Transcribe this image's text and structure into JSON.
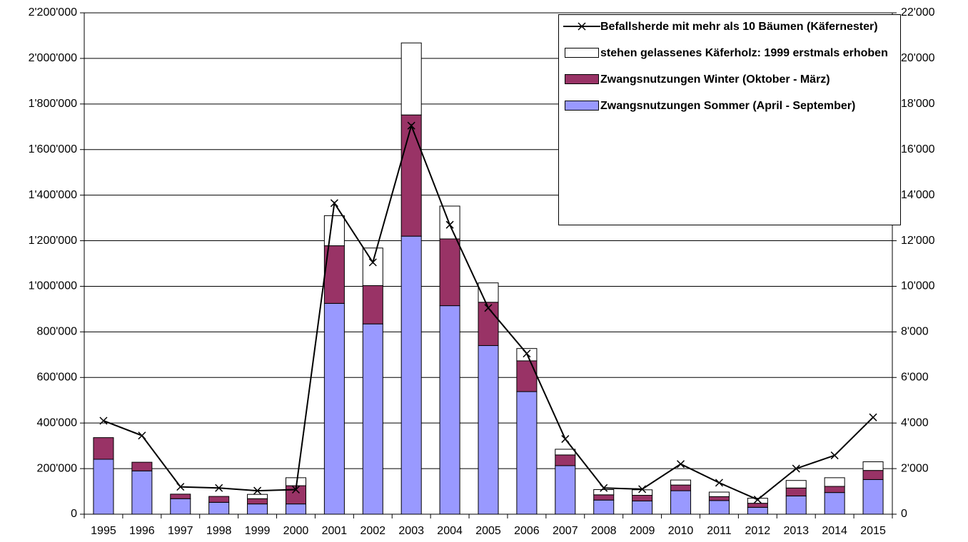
{
  "chart_data": {
    "type": "bar",
    "stacked": true,
    "categories": [
      "1995",
      "1996",
      "1997",
      "1998",
      "1999",
      "2000",
      "2001",
      "2002",
      "2003",
      "2004",
      "2005",
      "2006",
      "2007",
      "2008",
      "2009",
      "2010",
      "2011",
      "2012",
      "2013",
      "2014",
      "2015"
    ],
    "series": [
      {
        "name": "Zwangsnutzungen Sommer (April - September)",
        "color": "#9999ff",
        "values": [
          241000,
          190000,
          68000,
          52000,
          45000,
          45000,
          925000,
          835000,
          1220000,
          915000,
          740000,
          538000,
          213000,
          62000,
          58000,
          103000,
          60000,
          30000,
          80000,
          95000,
          152000
        ]
      },
      {
        "name": "Zwangsnutzungen Winter (Oktober - März)",
        "color": "#993366",
        "values": [
          95000,
          38000,
          20000,
          26000,
          23000,
          80000,
          253000,
          168000,
          532000,
          293000,
          190000,
          135000,
          47000,
          23000,
          25000,
          25000,
          17000,
          18000,
          35000,
          27000,
          40000
        ]
      },
      {
        "name": "stehen gelassenes Käferholz: 1999 erstmals erhoben",
        "color": "#ffffff",
        "values": [
          null,
          null,
          null,
          null,
          19000,
          35000,
          132000,
          165000,
          316000,
          144000,
          85000,
          54000,
          25000,
          23000,
          24000,
          22000,
          20000,
          22000,
          33000,
          38000,
          38000
        ]
      },
      {
        "name": "Befallsherde mit mehr als 10 Bäumen (Käfernester)",
        "type": "line",
        "axis": "y2",
        "color": "#000000",
        "values": [
          4100,
          3450,
          1200,
          1150,
          1030,
          1080,
          13650,
          11050,
          17050,
          12700,
          9050,
          7050,
          3300,
          1150,
          1100,
          2200,
          1380,
          640,
          2000,
          2580,
          4250
        ]
      }
    ],
    "ylim": [
      0,
      2200000
    ],
    "yticks": [
      0,
      {
        "value": 200000,
        "label": "200'000"
      },
      {
        "value": 400000,
        "label": "400'000"
      },
      {
        "value": 600000,
        "label": "600'000"
      },
      {
        "value": 800000,
        "label": "800'000"
      },
      {
        "value": 1000000,
        "label": "1'000'000"
      },
      {
        "value": 1200000,
        "label": "1'200'000"
      },
      {
        "value": 1400000,
        "label": "1'400'000"
      },
      {
        "value": 1600000,
        "label": "1'600'000"
      },
      {
        "value": 1800000,
        "label": "1'800'000"
      },
      {
        "value": 2000000,
        "label": "2'000'000"
      },
      {
        "value": 2200000,
        "label": "2'200'000"
      }
    ],
    "y2lim": [
      0,
      22000
    ],
    "y2ticks": [
      0,
      {
        "value": 2000,
        "label": "2'000"
      },
      {
        "value": 4000,
        "label": "4'000"
      },
      {
        "value": 6000,
        "label": "6'000"
      },
      {
        "value": 8000,
        "label": "8'000"
      },
      {
        "value": 10000,
        "label": "10'000"
      },
      {
        "value": 12000,
        "label": "12'000"
      },
      {
        "value": 14000,
        "label": "14'000"
      },
      {
        "value": 16000,
        "label": "16'000"
      },
      {
        "value": 18000,
        "label": "18'000"
      },
      {
        "value": 20000,
        "label": "20'000"
      },
      {
        "value": 22000,
        "label": "22'000"
      }
    ],
    "grid": true,
    "legend": "top-right"
  }
}
